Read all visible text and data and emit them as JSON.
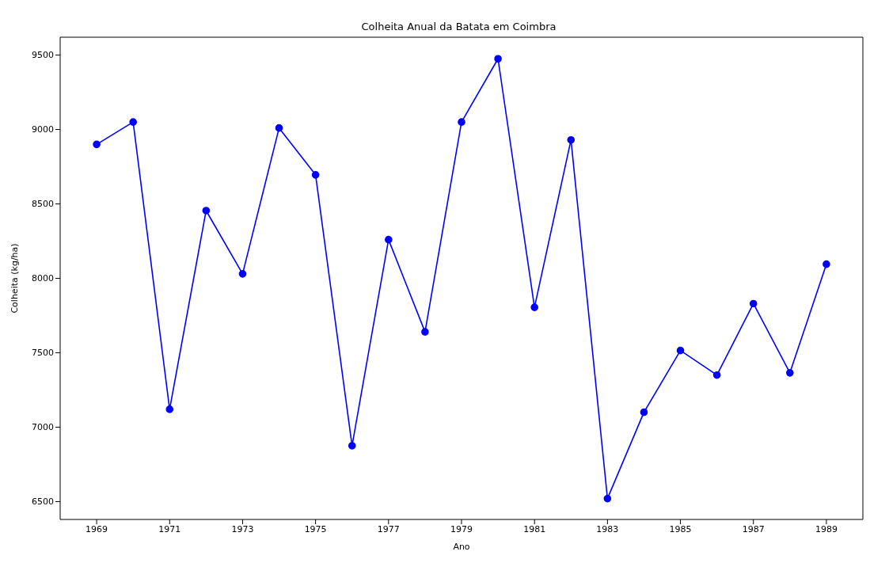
{
  "chart_data": {
    "type": "line",
    "title": "Colheita Anual da Batata em Coimbra",
    "xlabel": "Ano",
    "ylabel": "Colheita (kg/ha)",
    "x": [
      1969,
      1970,
      1971,
      1972,
      1973,
      1974,
      1975,
      1976,
      1977,
      1978,
      1979,
      1980,
      1981,
      1982,
      1983,
      1984,
      1985,
      1986,
      1987,
      1988,
      1989
    ],
    "series": [
      {
        "color": "#0000ff",
        "values": [
          8900,
          9050,
          7120,
          8455,
          8030,
          9010,
          8695,
          6875,
          8260,
          7640,
          9050,
          9475,
          7805,
          8930,
          6520,
          7100,
          7515,
          7350,
          7830,
          7365,
          8095
        ]
      }
    ],
    "xlim": [
      1968,
      1990
    ],
    "xticks": [
      1969,
      1971,
      1973,
      1975,
      1977,
      1979,
      1981,
      1983,
      1985,
      1987,
      1989
    ],
    "ylim": [
      6380,
      9620
    ],
    "yticks": [
      6500,
      7000,
      7500,
      8000,
      8500,
      9000,
      9500
    ],
    "marker": "circle",
    "line_style": "solid",
    "grid": false,
    "legend": false
  }
}
